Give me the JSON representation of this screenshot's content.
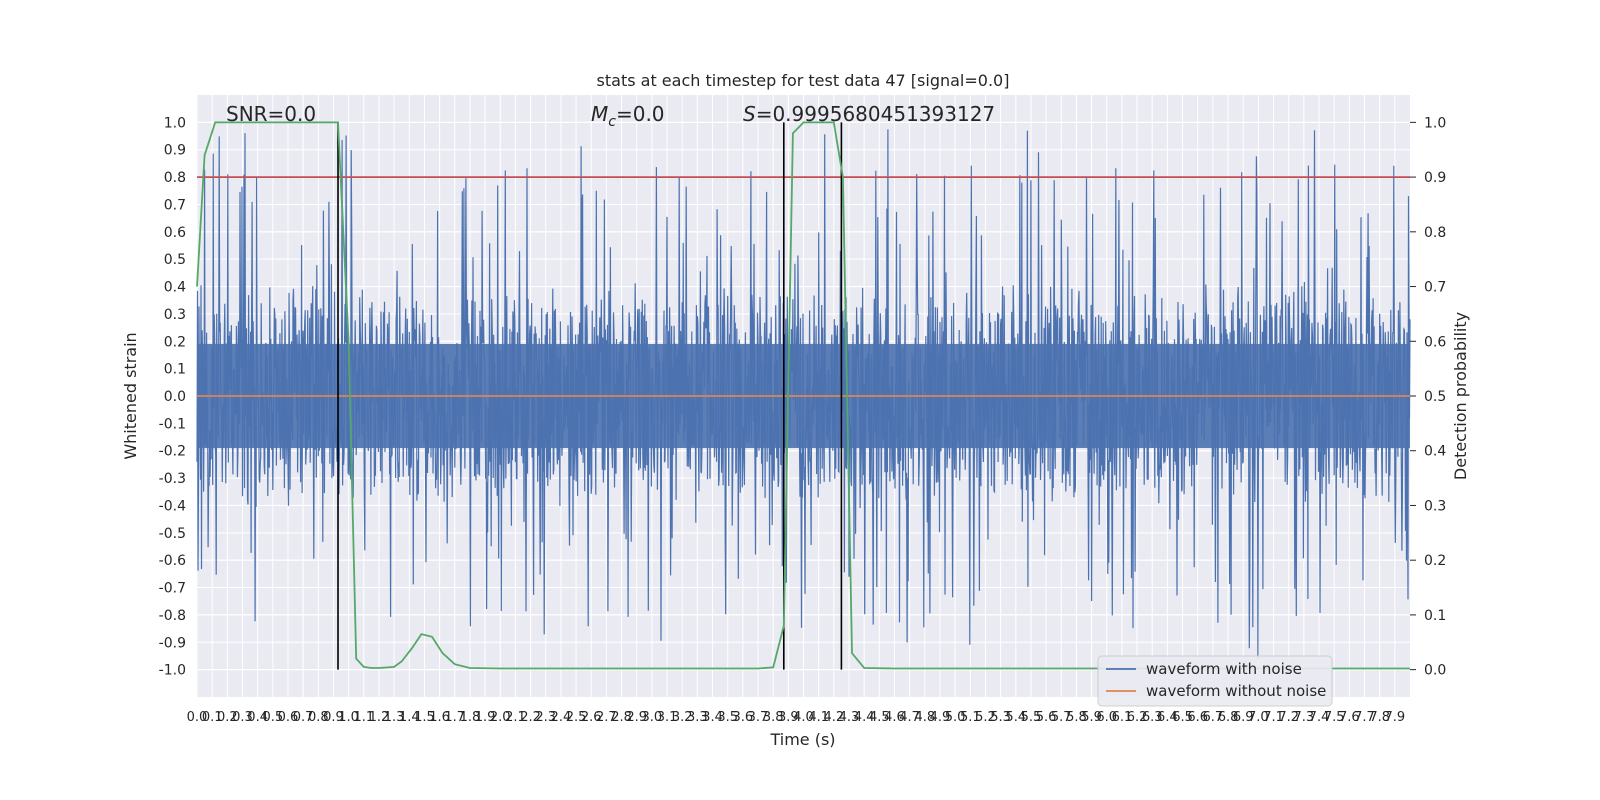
{
  "chart_data": {
    "type": "line",
    "title": "stats at each timestep for test data 47 [signal=0.0]",
    "xlabel": "Time (s)",
    "ylabel_left": "Whitened strain",
    "ylabel_right": "Detection probability",
    "xlim": [
      0.0,
      8.0
    ],
    "ylim_left": [
      -1.1,
      1.1
    ],
    "ylim_right": [
      -0.05,
      1.05
    ],
    "x_ticks": [
      "0.0",
      "0.1",
      "0.2",
      "0.3",
      "0.4",
      "0.5",
      "0.6",
      "0.7",
      "0.8",
      "0.9",
      "1.0",
      "1.1",
      "1.2",
      "1.3",
      "1.4",
      "1.5",
      "1.6",
      "1.7",
      "1.8",
      "1.9",
      "2.0",
      "2.1",
      "2.2",
      "2.3",
      "2.4",
      "2.5",
      "2.6",
      "2.7",
      "2.8",
      "2.9",
      "3.0",
      "3.1",
      "3.2",
      "3.3",
      "3.4",
      "3.5",
      "3.6",
      "3.7",
      "3.8",
      "3.9",
      "4.0",
      "4.1",
      "4.2",
      "4.3",
      "4.4",
      "4.5",
      "4.6",
      "4.7",
      "4.8",
      "4.9",
      "5.0",
      "5.1",
      "5.2",
      "5.3",
      "5.4",
      "5.5",
      "5.6",
      "5.7",
      "5.8",
      "5.9",
      "6.0",
      "6.1",
      "6.2",
      "6.3",
      "6.4",
      "6.5",
      "6.6",
      "6.7",
      "6.8",
      "6.9",
      "7.0",
      "7.1",
      "7.2",
      "7.3",
      "7.4",
      "7.5",
      "7.6",
      "7.7",
      "7.8",
      "7.9"
    ],
    "y_ticks_left": [
      "1.0",
      "0.9",
      "0.8",
      "0.7",
      "0.6",
      "0.5",
      "0.4",
      "0.3",
      "0.2",
      "0.1",
      "0.0",
      "-0.1",
      "-0.2",
      "-0.3",
      "-0.4",
      "-0.5",
      "-0.6",
      "-0.7",
      "-0.8",
      "-0.9",
      "-1.0"
    ],
    "y_ticks_right": [
      "1.0",
      "0.9",
      "0.8",
      "0.7",
      "0.6",
      "0.5",
      "0.4",
      "0.3",
      "0.2",
      "0.1",
      "0.0"
    ],
    "annotations": {
      "snr": "SNR=0.0",
      "mc_symbol": "M",
      "mc_sub": "c",
      "mc_value": "=0.0",
      "s_symbol": "S",
      "s_value": "=0.9995680451393127"
    },
    "threshold_right": 0.9,
    "detection_markers_x": [
      0.93,
      3.87,
      4.25
    ],
    "series": [
      {
        "name": "waveform with noise",
        "color": "#4c72b0",
        "style": "dense noise, amplitude ≈ ±0.45 with spikes to ±1.0"
      },
      {
        "name": "waveform without noise",
        "color": "#dd8452",
        "values": "flat at 0.0"
      },
      {
        "name": "detection probability",
        "color": "#55a868",
        "axis": "right",
        "x": [
          0.0,
          0.05,
          0.12,
          0.2,
          0.3,
          0.5,
          0.7,
          0.85,
          0.93,
          1.0,
          1.05,
          1.1,
          1.15,
          1.2,
          1.3,
          1.35,
          1.42,
          1.48,
          1.55,
          1.62,
          1.7,
          1.8,
          2.0,
          2.4,
          2.8,
          3.0,
          3.4,
          3.7,
          3.8,
          3.87,
          3.93,
          4.0,
          4.1,
          4.2,
          4.26,
          4.32,
          4.4,
          4.6,
          5.5,
          6.5,
          7.0,
          7.7,
          8.0
        ],
        "values": [
          0.7,
          0.94,
          1.0,
          1.0,
          1.0,
          1.0,
          1.0,
          1.0,
          1.0,
          0.6,
          0.02,
          0.005,
          0.003,
          0.003,
          0.005,
          0.015,
          0.04,
          0.065,
          0.06,
          0.03,
          0.01,
          0.003,
          0.002,
          0.002,
          0.002,
          0.002,
          0.002,
          0.002,
          0.004,
          0.08,
          0.98,
          1.0,
          1.0,
          1.0,
          0.9,
          0.03,
          0.003,
          0.002,
          0.002,
          0.002,
          0.002,
          0.002,
          0.002
        ]
      }
    ],
    "legend": {
      "position": "bottom-right",
      "entries": [
        "waveform with noise",
        "waveform without noise"
      ]
    },
    "colors": {
      "background": "#eaeaf2",
      "grid": "#ffffff",
      "threshold": "#c44e52",
      "markers": "#000000"
    }
  }
}
